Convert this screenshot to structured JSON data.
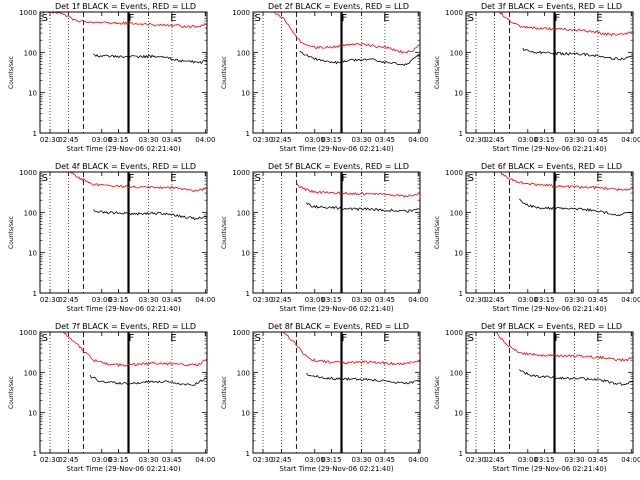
{
  "chart_data": [
    {
      "type": "line",
      "title": "Det 1f BLACK = Events, RED = LLD",
      "xlabel": "Start Time (29-Nov-06 02:21:40)",
      "ylabel": "Counts/sec",
      "y_scale": "log",
      "ylim": [
        1,
        1000
      ],
      "y_ticks": [
        "1",
        "10",
        "100",
        "1000"
      ],
      "x_ticks": [
        "02:30",
        "02:45",
        "03:00",
        "03:15",
        "03:30",
        "03:45",
        "04:00"
      ],
      "markers": [
        "S",
        "F",
        "E"
      ],
      "series": [
        {
          "color": "#ff0000",
          "values": [
            [
              0,
              1000
            ],
            [
              0.1,
              1000
            ],
            [
              0.16,
              800
            ],
            [
              0.22,
              600
            ],
            [
              0.35,
              560
            ],
            [
              0.45,
              530
            ],
            [
              0.55,
              520
            ],
            [
              0.62,
              500
            ],
            [
              0.7,
              470
            ],
            [
              0.8,
              460
            ],
            [
              0.9,
              430
            ],
            [
              0.96,
              440
            ],
            [
              1.0,
              510
            ]
          ]
        },
        {
          "color": "#000000",
          "values": [
            [
              0.32,
              85
            ],
            [
              0.4,
              80
            ],
            [
              0.5,
              75
            ],
            [
              0.58,
              78
            ],
            [
              0.65,
              80
            ],
            [
              0.72,
              78
            ],
            [
              0.8,
              68
            ],
            [
              0.86,
              60
            ],
            [
              0.92,
              58
            ],
            [
              0.96,
              55
            ],
            [
              1.0,
              65
            ]
          ]
        }
      ]
    },
    {
      "type": "line",
      "title": "Det 2f BLACK = Events, RED = LLD",
      "xlabel": "Start Time (29-Nov-06 02:21:40)",
      "ylabel": "Counts/sec",
      "y_scale": "log",
      "ylim": [
        1,
        1000
      ],
      "y_ticks": [
        "1",
        "10",
        "100",
        "1000"
      ],
      "x_ticks": [
        "02:30",
        "02:45",
        "03:00",
        "03:15",
        "03:30",
        "03:45",
        "04:00"
      ],
      "markers": [
        "S",
        "F",
        "E"
      ],
      "series": [
        {
          "color": "#ff0000",
          "values": [
            [
              0.12,
              1000
            ],
            [
              0.18,
              700
            ],
            [
              0.24,
              300
            ],
            [
              0.3,
              160
            ],
            [
              0.38,
              130
            ],
            [
              0.5,
              140
            ],
            [
              0.62,
              160
            ],
            [
              0.7,
              150
            ],
            [
              0.8,
              130
            ],
            [
              0.9,
              100
            ],
            [
              0.96,
              110
            ],
            [
              1.0,
              160
            ]
          ]
        },
        {
          "color": "#000000",
          "values": [
            [
              0.28,
              100
            ],
            [
              0.34,
              75
            ],
            [
              0.42,
              60
            ],
            [
              0.5,
              55
            ],
            [
              0.6,
              65
            ],
            [
              0.7,
              68
            ],
            [
              0.78,
              58
            ],
            [
              0.86,
              52
            ],
            [
              0.92,
              48
            ],
            [
              1.0,
              90
            ]
          ]
        }
      ]
    },
    {
      "type": "line",
      "title": "Det 3f BLACK = Events, RED = LLD",
      "xlabel": "Start Time (29-Nov-06 02:21:40)",
      "ylabel": "Counts/sec",
      "y_scale": "log",
      "ylim": [
        1,
        1000
      ],
      "y_ticks": [
        "1",
        "10",
        "100",
        "1000"
      ],
      "x_ticks": [
        "02:30",
        "02:45",
        "03:00",
        "03:15",
        "03:30",
        "03:45",
        "04:00"
      ],
      "markers": [
        "S",
        "F",
        "E"
      ],
      "series": [
        {
          "color": "#ff0000",
          "values": [
            [
              0.2,
              1000
            ],
            [
              0.26,
              600
            ],
            [
              0.34,
              420
            ],
            [
              0.45,
              390
            ],
            [
              0.55,
              380
            ],
            [
              0.65,
              360
            ],
            [
              0.75,
              330
            ],
            [
              0.85,
              280
            ],
            [
              0.92,
              270
            ],
            [
              1.0,
              320
            ]
          ]
        },
        {
          "color": "#000000",
          "values": [
            [
              0.34,
              120
            ],
            [
              0.4,
              100
            ],
            [
              0.5,
              95
            ],
            [
              0.6,
              92
            ],
            [
              0.7,
              90
            ],
            [
              0.8,
              80
            ],
            [
              0.88,
              70
            ],
            [
              0.94,
              68
            ],
            [
              1.0,
              80
            ]
          ]
        }
      ]
    },
    {
      "type": "line",
      "title": "Det 4f BLACK = Events, RED = LLD",
      "xlabel": "Start Time (29-Nov-06 02:21:40)",
      "ylabel": "Counts/sec",
      "y_scale": "log",
      "ylim": [
        1,
        1000
      ],
      "y_ticks": [
        "1",
        "10",
        "100",
        "1000"
      ],
      "x_ticks": [
        "02:30",
        "02:45",
        "03:00",
        "03:15",
        "03:30",
        "03:45",
        "04:00"
      ],
      "markers": [
        "S",
        "F",
        "E"
      ],
      "series": [
        {
          "color": "#ff0000",
          "values": [
            [
              0.18,
              1000
            ],
            [
              0.24,
              700
            ],
            [
              0.32,
              500
            ],
            [
              0.42,
              450
            ],
            [
              0.5,
              440
            ],
            [
              0.6,
              430
            ],
            [
              0.7,
              420
            ],
            [
              0.8,
              400
            ],
            [
              0.9,
              360
            ],
            [
              0.96,
              350
            ],
            [
              1.0,
              410
            ]
          ]
        },
        {
          "color": "#000000",
          "values": [
            [
              0.32,
              110
            ],
            [
              0.4,
              100
            ],
            [
              0.5,
              95
            ],
            [
              0.6,
              92
            ],
            [
              0.7,
              95
            ],
            [
              0.8,
              85
            ],
            [
              0.88,
              75
            ],
            [
              0.94,
              70
            ],
            [
              1.0,
              80
            ]
          ]
        }
      ]
    },
    {
      "type": "line",
      "title": "Det 5f BLACK = Events, RED = LLD",
      "xlabel": "Start Time (29-Nov-06 02:21:40)",
      "ylabel": "Counts/sec",
      "y_scale": "log",
      "ylim": [
        1,
        1000
      ],
      "y_ticks": [
        "1",
        "10",
        "100",
        "1000"
      ],
      "x_ticks": [
        "02:30",
        "02:45",
        "03:00",
        "03:15",
        "03:30",
        "03:45",
        "04:00"
      ],
      "markers": [
        "S",
        "F",
        "E"
      ],
      "series": [
        {
          "color": "#ff0000",
          "values": [
            [
              0.26,
              500
            ],
            [
              0.3,
              380
            ],
            [
              0.36,
              320
            ],
            [
              0.45,
              310
            ],
            [
              0.55,
              300
            ],
            [
              0.65,
              290
            ],
            [
              0.75,
              280
            ],
            [
              0.85,
              260
            ],
            [
              0.92,
              250
            ],
            [
              1.0,
              300
            ]
          ]
        },
        {
          "color": "#000000",
          "values": [
            [
              0.32,
              160
            ],
            [
              0.36,
              140
            ],
            [
              0.45,
              130
            ],
            [
              0.55,
              125
            ],
            [
              0.65,
              120
            ],
            [
              0.75,
              118
            ],
            [
              0.85,
              110
            ],
            [
              0.92,
              105
            ],
            [
              1.0,
              120
            ]
          ]
        }
      ]
    },
    {
      "type": "line",
      "title": "Det 6f BLACK = Events, RED = LLD",
      "xlabel": "Start Time (29-Nov-06 02:21:40)",
      "ylabel": "Counts/sec",
      "y_scale": "log",
      "ylim": [
        1,
        1000
      ],
      "y_ticks": [
        "1",
        "10",
        "100",
        "1000"
      ],
      "x_ticks": [
        "02:30",
        "02:45",
        "03:00",
        "03:15",
        "03:30",
        "03:45",
        "04:00"
      ],
      "markers": [
        "S",
        "F",
        "E"
      ],
      "series": [
        {
          "color": "#ff0000",
          "values": [
            [
              0.2,
              1000
            ],
            [
              0.26,
              700
            ],
            [
              0.32,
              550
            ],
            [
              0.42,
              480
            ],
            [
              0.52,
              450
            ],
            [
              0.62,
              430
            ],
            [
              0.72,
              420
            ],
            [
              0.82,
              400
            ],
            [
              0.9,
              370
            ],
            [
              0.96,
              360
            ],
            [
              1.0,
              420
            ]
          ]
        },
        {
          "color": "#000000",
          "values": [
            [
              0.32,
              200
            ],
            [
              0.36,
              150
            ],
            [
              0.45,
              130
            ],
            [
              0.55,
              125
            ],
            [
              0.65,
              120
            ],
            [
              0.75,
              115
            ],
            [
              0.85,
              95
            ],
            [
              0.92,
              85
            ],
            [
              1.0,
              100
            ]
          ]
        }
      ]
    },
    {
      "type": "line",
      "title": "Det 7f BLACK = Events, RED = LLD",
      "xlabel": "Start Time (29-Nov-06 02:21:40)",
      "ylabel": "Counts/sec",
      "y_scale": "log",
      "ylim": [
        1,
        1000
      ],
      "y_ticks": [
        "1",
        "10",
        "100",
        "1000"
      ],
      "x_ticks": [
        "02:30",
        "02:45",
        "03:00",
        "03:15",
        "03:30",
        "03:45",
        "04:00"
      ],
      "markers": [
        "S",
        "F",
        "E"
      ],
      "series": [
        {
          "color": "#ff0000",
          "values": [
            [
              0.14,
              1000
            ],
            [
              0.2,
              600
            ],
            [
              0.26,
              350
            ],
            [
              0.32,
              200
            ],
            [
              0.4,
              160
            ],
            [
              0.5,
              150
            ],
            [
              0.6,
              160
            ],
            [
              0.7,
              170
            ],
            [
              0.8,
              160
            ],
            [
              0.9,
              150
            ],
            [
              0.96,
              160
            ],
            [
              1.0,
              220
            ]
          ]
        },
        {
          "color": "#000000",
          "values": [
            [
              0.3,
              80
            ],
            [
              0.36,
              60
            ],
            [
              0.45,
              55
            ],
            [
              0.55,
              52
            ],
            [
              0.65,
              58
            ],
            [
              0.75,
              60
            ],
            [
              0.85,
              52
            ],
            [
              0.92,
              50
            ],
            [
              1.0,
              70
            ]
          ]
        }
      ]
    },
    {
      "type": "line",
      "title": "Det 8f BLACK = Events, RED = LLD",
      "xlabel": "Start Time (29-Nov-06 02:21:40)",
      "ylabel": "Counts/sec",
      "y_scale": "log",
      "ylim": [
        1,
        1000
      ],
      "y_ticks": [
        "1",
        "10",
        "100",
        "1000"
      ],
      "x_ticks": [
        "02:30",
        "02:45",
        "03:00",
        "03:15",
        "03:30",
        "03:45",
        "04:00"
      ],
      "markers": [
        "S",
        "F",
        "E"
      ],
      "series": [
        {
          "color": "#ff0000",
          "values": [
            [
              0.18,
              1000
            ],
            [
              0.24,
              600
            ],
            [
              0.3,
              300
            ],
            [
              0.36,
              200
            ],
            [
              0.45,
              180
            ],
            [
              0.55,
              175
            ],
            [
              0.65,
              180
            ],
            [
              0.75,
              175
            ],
            [
              0.85,
              165
            ],
            [
              0.92,
              160
            ],
            [
              1.0,
              200
            ]
          ]
        },
        {
          "color": "#000000",
          "values": [
            [
              0.32,
              90
            ],
            [
              0.4,
              75
            ],
            [
              0.5,
              70
            ],
            [
              0.6,
              68
            ],
            [
              0.7,
              65
            ],
            [
              0.8,
              60
            ],
            [
              0.88,
              55
            ],
            [
              0.94,
              55
            ],
            [
              1.0,
              65
            ]
          ]
        }
      ]
    },
    {
      "type": "line",
      "title": "Det 9f BLACK = Events, RED = LLD",
      "xlabel": "Start Time (29-Nov-06 02:21:40)",
      "ylabel": "Counts/sec",
      "y_scale": "log",
      "ylim": [
        1,
        1000
      ],
      "y_ticks": [
        "1",
        "10",
        "100",
        "1000"
      ],
      "x_ticks": [
        "02:30",
        "02:45",
        "03:00",
        "03:15",
        "03:30",
        "03:45",
        "04:00"
      ],
      "markers": [
        "S",
        "F",
        "E"
      ],
      "series": [
        {
          "color": "#ff0000",
          "values": [
            [
              0.18,
              1000
            ],
            [
              0.24,
              500
            ],
            [
              0.32,
              300
            ],
            [
              0.42,
              270
            ],
            [
              0.52,
              260
            ],
            [
              0.62,
              255
            ],
            [
              0.72,
              250
            ],
            [
              0.82,
              230
            ],
            [
              0.9,
              210
            ],
            [
              0.96,
              200
            ],
            [
              1.0,
              240
            ]
          ]
        },
        {
          "color": "#000000",
          "values": [
            [
              0.32,
              110
            ],
            [
              0.4,
              80
            ],
            [
              0.5,
              75
            ],
            [
              0.6,
              72
            ],
            [
              0.7,
              70
            ],
            [
              0.8,
              65
            ],
            [
              0.88,
              55
            ],
            [
              0.94,
              50
            ],
            [
              1.0,
              60
            ]
          ]
        }
      ]
    }
  ]
}
